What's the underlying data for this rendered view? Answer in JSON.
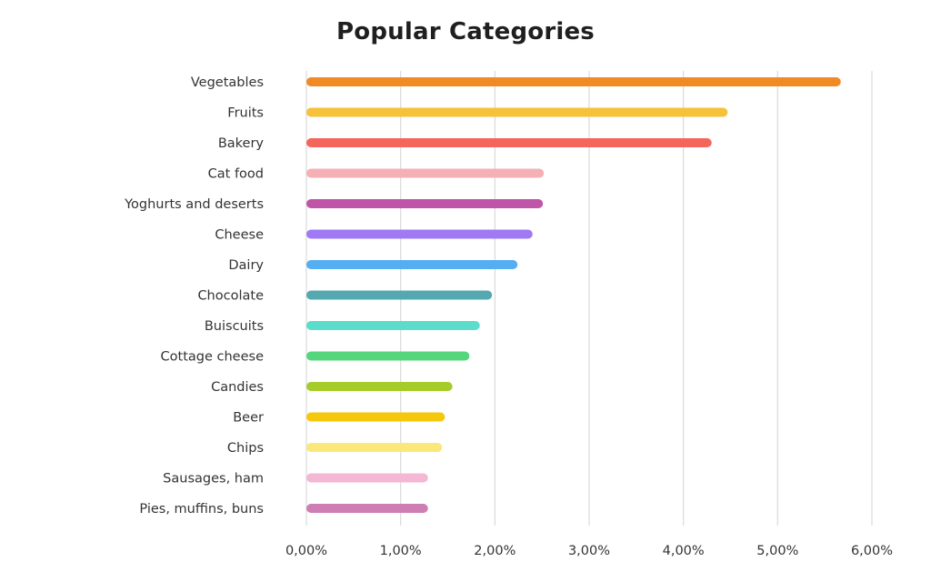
{
  "chart_data": {
    "type": "bar",
    "orientation": "horizontal",
    "title": "Popular Categories",
    "xlabel": "",
    "ylabel": "",
    "xlim": [
      0,
      6
    ],
    "grid": true,
    "tick_values": [
      0,
      1,
      2,
      3,
      4,
      5,
      6
    ],
    "tick_labels": [
      "0,00%",
      "1,00%",
      "2,00%",
      "3,00%",
      "4,00%",
      "5,00%",
      "6,00%"
    ],
    "categories": [
      "Vegetables",
      "Fruits",
      "Bakery",
      "Cat food",
      "Yoghurts and deserts",
      "Cheese",
      "Dairy",
      "Chocolate",
      "Buiscuits",
      "Cottage cheese",
      "Candies",
      "Beer",
      "Chips",
      "Sausages, ham",
      "Pies, muffins, buns"
    ],
    "values": [
      5.67,
      4.47,
      4.3,
      2.52,
      2.51,
      2.4,
      2.24,
      1.97,
      1.84,
      1.73,
      1.55,
      1.47,
      1.44,
      1.29,
      1.29
    ],
    "colors": [
      "#f08a24",
      "#f5c23a",
      "#f4665c",
      "#f4b0b6",
      "#c054a8",
      "#a07af5",
      "#55aef2",
      "#56a8b0",
      "#5cdcca",
      "#55d67c",
      "#a6cc2a",
      "#f5c80c",
      "#fae97a",
      "#f4b8d4",
      "#cf7eb4"
    ]
  }
}
